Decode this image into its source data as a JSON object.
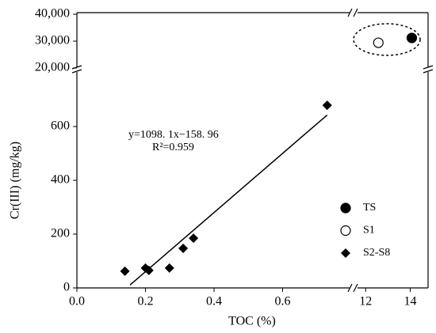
{
  "chart_data": {
    "type": "scatter",
    "xlabel": "TOC (%)",
    "ylabel": "Cr(III) (mg/kg)",
    "x_segments": [
      {
        "lim": [
          0,
          0.8
        ],
        "ticks": [
          {
            "value": 0,
            "label": "0.0"
          },
          0.2,
          0.4,
          0.6
        ]
      },
      {
        "lim": [
          11.6,
          14.8
        ],
        "ticks": [
          12,
          14
        ]
      }
    ],
    "y_segments": [
      {
        "lim": [
          0,
          800
        ],
        "ticks": [
          0,
          200,
          400,
          600
        ]
      },
      {
        "lim": [
          19400,
          40600
        ],
        "ticks": [
          {
            "value": 20000,
            "label": "20,000"
          },
          {
            "value": 30000,
            "label": "30,000"
          },
          {
            "value": 40000,
            "label": "40,000"
          }
        ]
      }
    ],
    "series": [
      {
        "name": "TS",
        "color": "#000000",
        "marker": "circle-filled",
        "x": [
          14.07
        ],
        "values": [
          31200
        ]
      },
      {
        "name": "S1",
        "color": "#000000",
        "marker": "circle-open",
        "x": [
          12.57
        ],
        "values": [
          29400
        ]
      },
      {
        "name": "S2-S8",
        "color": "#000000",
        "marker": "diamond",
        "x": [
          0.14,
          0.2,
          0.21,
          0.27,
          0.31,
          0.34,
          0.73
        ],
        "values": [
          62,
          74,
          65,
          74,
          147,
          185,
          679
        ]
      }
    ],
    "trendline": {
      "x": [
        0.155,
        0.73
      ],
      "values": [
        11,
        643
      ]
    },
    "annotations": [
      "y=1098. 1x−158. 96",
      "R²=0.959"
    ]
  }
}
